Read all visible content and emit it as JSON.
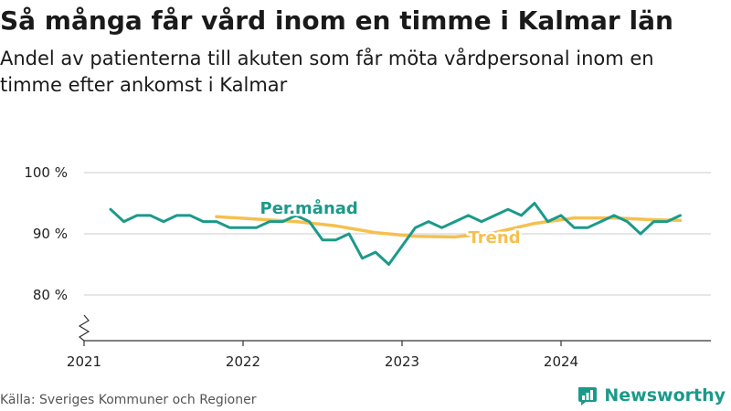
{
  "title": "Så många får vård inom en timme i Kalmar län",
  "subtitle": "Andel av patienterna till akuten som får möta vårdpersonal inom en timme efter ankomst i Kalmar",
  "source": "Källa: Sveriges Kommuner och Regioner",
  "brand": {
    "name": "Newsworthy",
    "icon": "bar-chart-logo-icon"
  },
  "colors": {
    "monthly": "#1b9a8a",
    "trend": "#f5c04e",
    "grid": "#cccccc",
    "axis": "#333333",
    "brand": "#1a9a8a"
  },
  "chart_data": {
    "type": "line",
    "title": "Så många får vård inom en timme i Kalmar län",
    "subtitle": "Andel av patienterna till akuten som får möta vårdpersonal inom en timme efter ankomst i Kalmar",
    "xlabel": "",
    "ylabel": "",
    "xlim": [
      "2021-01",
      "2024-10"
    ],
    "ylim": [
      72,
      100
    ],
    "axis_break": "y",
    "grid": "horizontal",
    "x_ticks": [
      "2021",
      "2022",
      "2023",
      "2024"
    ],
    "y_ticks": [
      {
        "value": 80,
        "label": "80 %"
      },
      {
        "value": 90,
        "label": "90 %"
      },
      {
        "value": 100,
        "label": "100 %"
      }
    ],
    "series": [
      {
        "name": "Per.månad",
        "color": "#1b9a8a",
        "points": [
          [
            "2021-03",
            94
          ],
          [
            "2021-04",
            92
          ],
          [
            "2021-05",
            93
          ],
          [
            "2021-06",
            93
          ],
          [
            "2021-07",
            92
          ],
          [
            "2021-08",
            93
          ],
          [
            "2021-09",
            93
          ],
          [
            "2021-10",
            92
          ],
          [
            "2021-11",
            92
          ],
          [
            "2021-12",
            91
          ],
          [
            "2022-01",
            91
          ],
          [
            "2022-02",
            91
          ],
          [
            "2022-03",
            92
          ],
          [
            "2022-04",
            92
          ],
          [
            "2022-05",
            93
          ],
          [
            "2022-06",
            92
          ],
          [
            "2022-07",
            89
          ],
          [
            "2022-08",
            89
          ],
          [
            "2022-09",
            90
          ],
          [
            "2022-10",
            86
          ],
          [
            "2022-11",
            87
          ],
          [
            "2022-12",
            85
          ],
          [
            "2023-01",
            88
          ],
          [
            "2023-02",
            91
          ],
          [
            "2023-03",
            92
          ],
          [
            "2023-04",
            91
          ],
          [
            "2023-05",
            92
          ],
          [
            "2023-06",
            93
          ],
          [
            "2023-07",
            92
          ],
          [
            "2023-08",
            93
          ],
          [
            "2023-09",
            94
          ],
          [
            "2023-10",
            93
          ],
          [
            "2023-11",
            95
          ],
          [
            "2023-12",
            92
          ],
          [
            "2024-01",
            93
          ],
          [
            "2024-02",
            91
          ],
          [
            "2024-03",
            91
          ],
          [
            "2024-04",
            92
          ],
          [
            "2024-05",
            93
          ],
          [
            "2024-06",
            92
          ],
          [
            "2024-07",
            90
          ],
          [
            "2024-08",
            92
          ],
          [
            "2024-09",
            92
          ],
          [
            "2024-10",
            93
          ]
        ]
      },
      {
        "name": "Trend",
        "color": "#f5c04e",
        "points": [
          [
            "2021-11",
            92.8
          ],
          [
            "2022-02",
            92.4
          ],
          [
            "2022-05",
            92.0
          ],
          [
            "2022-08",
            91.3
          ],
          [
            "2022-11",
            90.2
          ],
          [
            "2023-02",
            89.6
          ],
          [
            "2023-05",
            89.5
          ],
          [
            "2023-08",
            90.2
          ],
          [
            "2023-11",
            91.7
          ],
          [
            "2024-02",
            92.6
          ],
          [
            "2024-05",
            92.6
          ],
          [
            "2024-08",
            92.3
          ],
          [
            "2024-10",
            92.2
          ]
        ]
      }
    ],
    "annotations": [
      {
        "text": "Per.månad",
        "series": "Per.månad"
      },
      {
        "text": "Trend",
        "series": "Trend"
      }
    ]
  }
}
